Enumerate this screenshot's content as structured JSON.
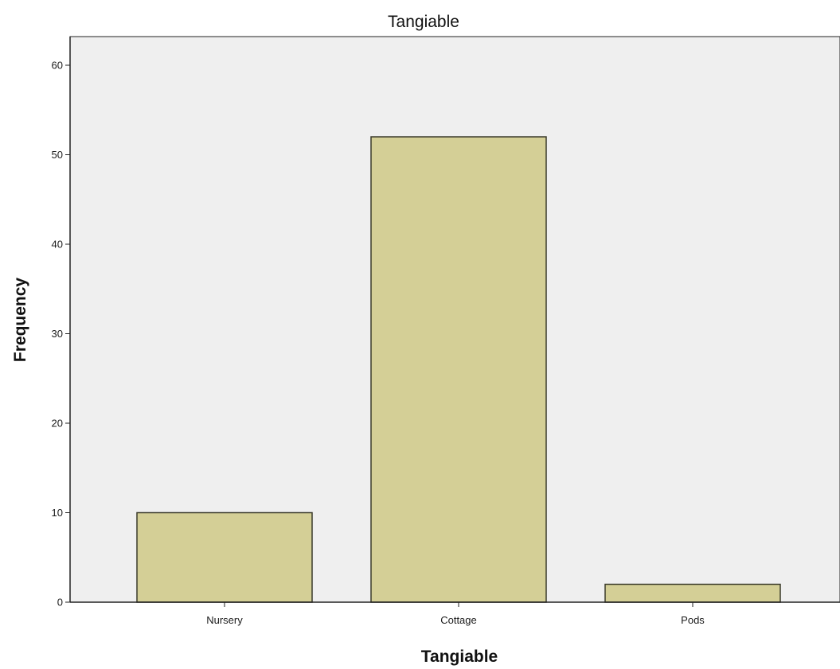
{
  "chart_data": {
    "type": "bar",
    "title": "Tangiable",
    "xlabel": "Tangiable",
    "ylabel": "Frequency",
    "categories": [
      "Nursery",
      "Cottage",
      "Pods"
    ],
    "values": [
      10,
      52,
      2
    ],
    "ylim": [
      0,
      60
    ],
    "yticks": [
      0,
      10,
      20,
      30,
      40,
      50,
      60
    ],
    "grid": false,
    "legend": "none",
    "colors": {
      "plot_background": "#efefef",
      "bar_fill": "#d4cf96",
      "bar_stroke": "#3a3a2a",
      "axis": "#222222"
    }
  }
}
